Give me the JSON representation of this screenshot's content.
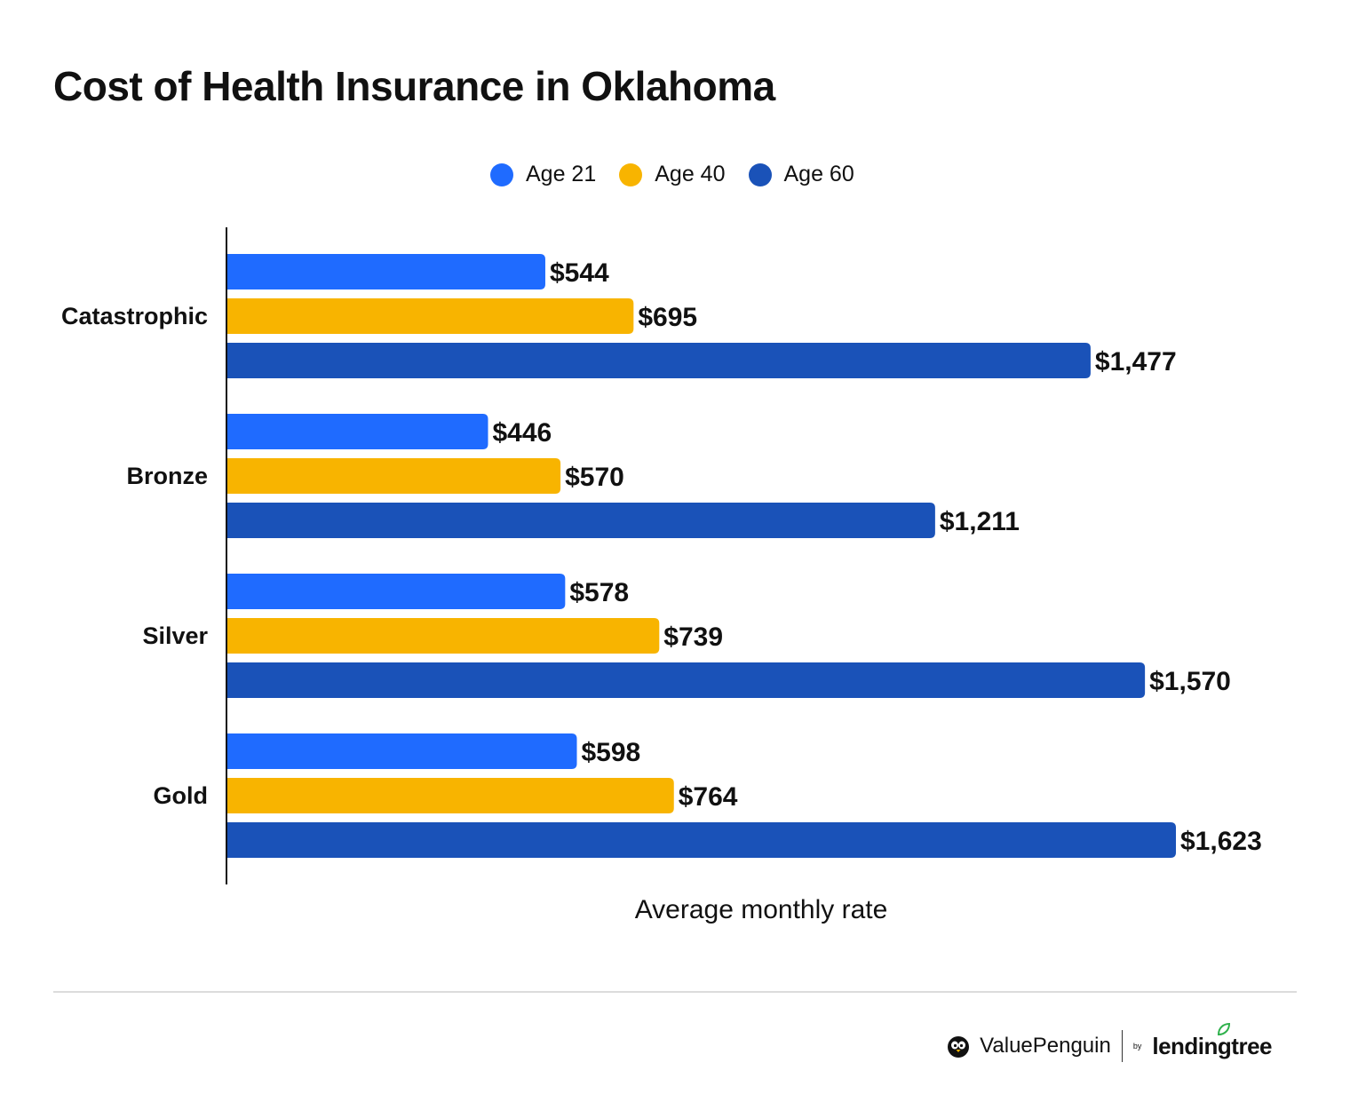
{
  "chart_data": {
    "type": "bar",
    "orientation": "horizontal",
    "title": "Cost of Health Insurance in Oklahoma",
    "xlabel": "Average monthly rate",
    "ylabel": "",
    "categories": [
      "Catastrophic",
      "Bronze",
      "Silver",
      "Gold"
    ],
    "series": [
      {
        "name": "Age 21",
        "color": "#1f6bff",
        "values": [
          544,
          446,
          578,
          598
        ],
        "labels": [
          "$544",
          "$446",
          "$578",
          "$598"
        ]
      },
      {
        "name": "Age 40",
        "color": "#f8b400",
        "values": [
          695,
          570,
          739,
          764
        ],
        "labels": [
          "$695",
          "$570",
          "$739",
          "$764"
        ]
      },
      {
        "name": "Age 60",
        "color": "#1a52b8",
        "values": [
          1477,
          1211,
          1570,
          1623
        ],
        "labels": [
          "$1,477",
          "$1,211",
          "$1,570",
          "$1,623"
        ]
      }
    ],
    "xlim": [
      0,
      1623
    ],
    "grid": false,
    "legend": "top-center"
  },
  "branding": {
    "valuepenguin": "ValuePenguin",
    "by": "by",
    "lendingtree": "lendingtree",
    "icons": [
      "penguin-icon",
      "leaf-icon"
    ]
  }
}
